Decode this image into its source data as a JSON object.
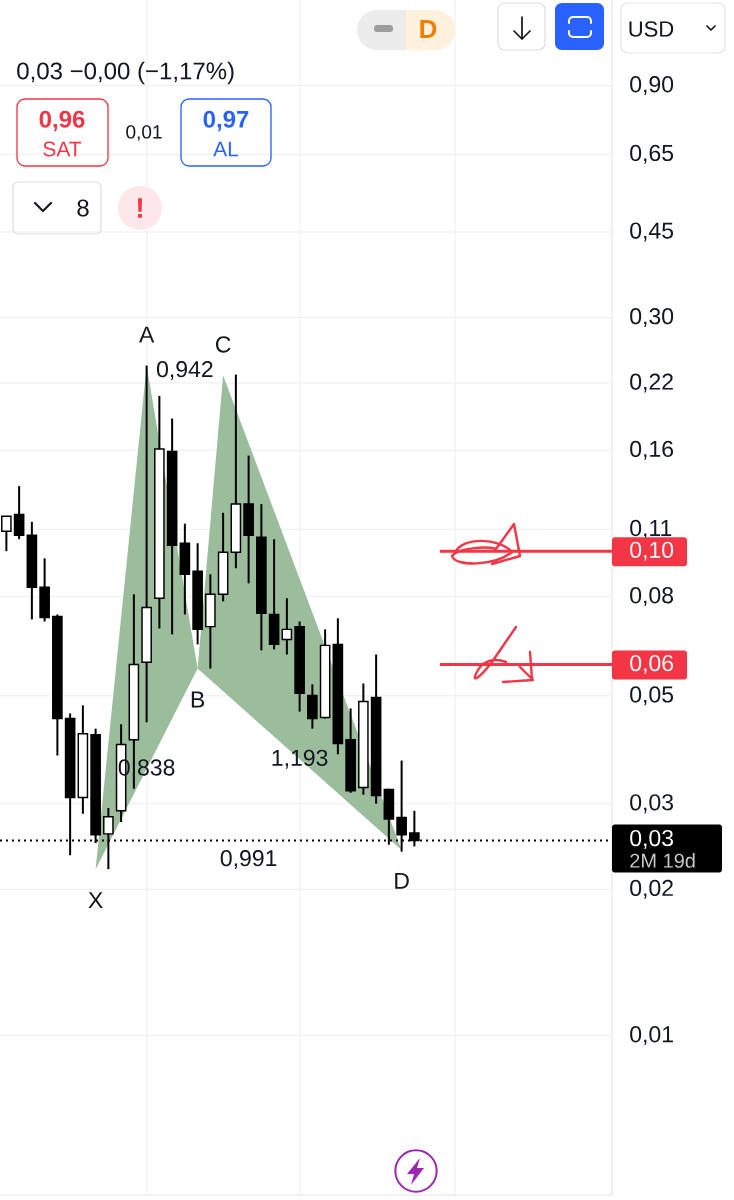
{
  "chart_data": {
    "type": "candlestick",
    "categories": [
      null,
      null,
      null,
      null,
      null,
      null,
      null,
      null,
      null,
      null,
      null,
      null,
      null,
      null,
      null,
      null,
      null,
      null,
      null,
      null,
      null,
      null,
      null,
      null,
      null,
      null,
      null,
      null,
      null,
      null,
      null,
      null,
      null,
      null,
      null,
      null,
      null,
      null,
      null,
      null,
      null,
      null,
      null,
      null,
      null,
      null,
      null,
      null
    ],
    "ohlc": [
      [
        0.109,
        0.117,
        0.0992,
        0.117
      ],
      [
        0.118,
        0.135,
        0.105,
        0.107
      ],
      [
        0.107,
        0.114,
        0.0718,
        0.0836
      ],
      [
        0.0836,
        0.0959,
        0.0711,
        0.0725
      ],
      [
        0.0728,
        0.0735,
        0.0377,
        0.0449
      ],
      [
        0.0449,
        0.046,
        0.0235,
        0.0309
      ],
      [
        0.0309,
        0.0478,
        0.0286,
        0.0418
      ],
      [
        0.0416,
        0.0428,
        0.0249,
        0.0259
      ],
      [
        0.026,
        0.0294,
        0.022,
        0.0282
      ],
      [
        0.029,
        0.0437,
        0.0275,
        0.0397
      ],
      [
        0.0406,
        0.0809,
        0.0322,
        0.058
      ],
      [
        0.0586,
        0.239,
        0.0441,
        0.076
      ],
      [
        0.0794,
        0.207,
        0.0688,
        0.161
      ],
      [
        0.159,
        0.186,
        0.0669,
        0.102
      ],
      [
        0.103,
        0.113,
        0.0735,
        0.0889
      ],
      [
        0.0902,
        0.103,
        0.0638,
        0.0685
      ],
      [
        0.0694,
        0.0889,
        0.0569,
        0.0809
      ],
      [
        0.0809,
        0.119,
        0.0782,
        0.0987
      ],
      [
        0.0987,
        0.229,
        0.0915,
        0.124
      ],
      [
        0.124,
        0.156,
        0.0852,
        0.107
      ],
      [
        0.106,
        0.124,
        0.062,
        0.0739
      ],
      [
        0.0735,
        0.105,
        0.0623,
        0.0638
      ],
      [
        0.0653,
        0.0794,
        0.0608,
        0.0685
      ],
      [
        0.0694,
        0.0711,
        0.0464,
        0.0506
      ],
      [
        0.0501,
        0.0528,
        0.0428,
        0.0449
      ],
      [
        0.0451,
        0.0685,
        0.0449,
        0.0635
      ],
      [
        0.0638,
        0.0722,
        0.0379,
        0.0399
      ],
      [
        0.0406,
        0.0471,
        0.0316,
        0.0319
      ],
      [
        0.0324,
        0.053,
        0.0313,
        0.0487
      ],
      [
        0.0496,
        0.0608,
        0.03,
        0.0312
      ],
      [
        0.0321,
        0.0322,
        0.0247,
        0.0279
      ],
      [
        0.0281,
        0.0368,
        0.0239,
        0.0259
      ],
      [
        0.0261,
        0.029,
        0.0245,
        0.0252
      ],
      null,
      null,
      null,
      null,
      null,
      null,
      null,
      null,
      null,
      null,
      null,
      null,
      null,
      null,
      null
    ],
    "series": [
      {
        "type": "area",
        "color": "#9cbd9c",
        "values": [
          null,
          null,
          null,
          null,
          null,
          null,
          null,
          0.022,
          null,
          null,
          null,
          0.239,
          null,
          null,
          null,
          0.0569,
          null,
          0.228,
          null,
          null,
          null,
          null,
          null,
          null,
          null,
          null,
          null,
          null,
          null,
          null,
          null,
          0.0241,
          null,
          null,
          null,
          null,
          null,
          null,
          null,
          null,
          null,
          null,
          null,
          null,
          null,
          null,
          null,
          null
        ],
        "value_labels": [
          null,
          null,
          null,
          null,
          null,
          null,
          null,
          "X",
          null,
          null,
          null,
          "A",
          null,
          null,
          null,
          "B",
          null,
          "C",
          null,
          null,
          null,
          null,
          null,
          null,
          null,
          null,
          null,
          null,
          null,
          null,
          null,
          "D",
          null,
          null,
          null,
          null,
          null,
          null,
          null,
          null,
          null,
          null,
          null,
          null,
          null,
          null,
          null,
          null
        ]
      }
    ],
    "log": "y",
    "ylim": [
      0.0047,
      1.35
    ],
    "yticks": [
      {
        "value": 0.9,
        "label": "0,90"
      },
      {
        "value": 0.65,
        "label": "0,65"
      },
      {
        "value": 0.45,
        "label": "0,45"
      },
      {
        "value": 0.3,
        "label": "0,30"
      },
      {
        "value": 0.22,
        "label": "0,22"
      },
      {
        "value": 0.16,
        "label": "0,16"
      },
      {
        "value": 0.11,
        "label": "0,11"
      },
      {
        "value": 0.08,
        "label": "0,08"
      },
      {
        "value": 0.05,
        "label": "0,05"
      },
      {
        "value": 0.03,
        "label": "0,03"
      },
      {
        "value": 0.02,
        "label": "0,02"
      },
      {
        "value": 0.01,
        "label": "0,01"
      }
    ],
    "tick_labels": "y",
    "grid": true,
    "ref_lines": [
      {
        "axis": "y",
        "value": 0.0992,
        "label": "0,10",
        "color": "#f23645",
        "line_style": "solid"
      },
      {
        "axis": "y",
        "value": 0.058,
        "label": "0,06",
        "color": "#f23645",
        "line_style": "solid"
      },
      {
        "axis": "y",
        "value": 0.0252,
        "label": "0,03",
        "color": "#000000",
        "line_style": "dotted"
      }
    ],
    "annotations": [
      "0,838",
      "0,942",
      "1,193",
      "0,991",
      "0,03 −0,00 (−1,17%)",
      "0,96",
      "SAT",
      "0,01",
      "0,97",
      "AL",
      "8",
      "D",
      "USD",
      "2M 19d",
      "!"
    ]
  }
}
